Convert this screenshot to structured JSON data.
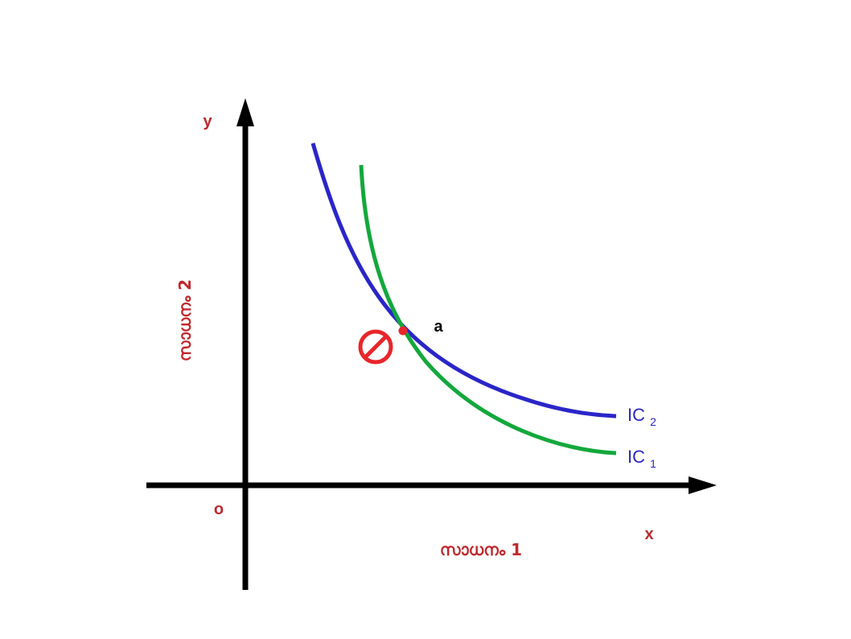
{
  "colors": {
    "axis": "#000000",
    "label": "#c0282d",
    "ic2_curve": "#2a25c8",
    "ic1_curve": "#13a83c",
    "point": "#e8262b",
    "prohibited_symbol": "#e8262b"
  },
  "axes": {
    "y_letter": "y",
    "x_letter": "x",
    "origin_letter": "o",
    "y_title": "സാധനം 2",
    "x_title": "സാധനം 1"
  },
  "point": {
    "label": "a"
  },
  "curves": [
    {
      "name": "IC",
      "subscript": "2",
      "color_key": "ic2_curve"
    },
    {
      "name": "IC",
      "subscript": "1",
      "color_key": "ic1_curve"
    }
  ],
  "symbol": {
    "icon": "prohibited-icon"
  }
}
